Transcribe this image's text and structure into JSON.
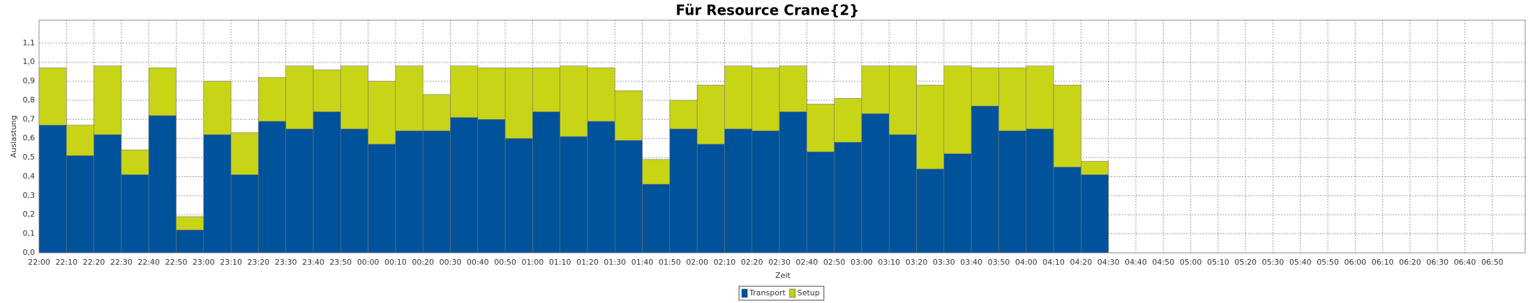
{
  "chart_data": {
    "type": "stacked-bar",
    "title": "Für Resource Crane{2}",
    "xlabel": "Zeit",
    "ylabel": "Auslastung",
    "categories": [
      "22:00",
      "22:10",
      "22:20",
      "22:30",
      "22:40",
      "22:50",
      "23:00",
      "23:10",
      "23:20",
      "23:30",
      "23:40",
      "23:50",
      "00:00",
      "00:10",
      "00:20",
      "00:30",
      "00:40",
      "00:50",
      "01:00",
      "01:10",
      "01:20",
      "01:30",
      "01:40",
      "01:50",
      "02:00",
      "02:10",
      "02:20",
      "02:30",
      "02:40",
      "02:50",
      "03:00",
      "03:10",
      "03:20",
      "03:30",
      "03:40",
      "03:50",
      "04:00",
      "04:10",
      "04:20",
      "04:30",
      "04:40",
      "04:50",
      "05:00",
      "05:10",
      "05:20",
      "05:30",
      "05:40",
      "05:50",
      "06:00",
      "06:10",
      "06:20",
      "06:30",
      "06:40",
      "06:50"
    ],
    "series": [
      {
        "name": "Transport",
        "color": "#00529b",
        "values": [
          0.67,
          0.51,
          0.62,
          0.41,
          0.72,
          0.12,
          0.62,
          0.41,
          0.69,
          0.65,
          0.74,
          0.65,
          0.57,
          0.64,
          0.64,
          0.71,
          0.7,
          0.6,
          0.74,
          0.61,
          0.69,
          0.59,
          0.36,
          0.65,
          0.57,
          0.65,
          0.64,
          0.74,
          0.53,
          0.58,
          0.73,
          0.62,
          0.44,
          0.52,
          0.77,
          0.64,
          0.65,
          0.45,
          0.41,
          null,
          null,
          null,
          null,
          null,
          null,
          null,
          null,
          null,
          null,
          null,
          null,
          null,
          null,
          null
        ]
      },
      {
        "name": "Setup",
        "color": "#c8d416",
        "values": [
          0.3,
          0.16,
          0.36,
          0.13,
          0.25,
          0.07,
          0.28,
          0.22,
          0.23,
          0.33,
          0.22,
          0.33,
          0.33,
          0.34,
          0.19,
          0.27,
          0.27,
          0.37,
          0.23,
          0.37,
          0.28,
          0.26,
          0.13,
          0.15,
          0.31,
          0.33,
          0.33,
          0.24,
          0.25,
          0.23,
          0.25,
          0.36,
          0.44,
          0.46,
          0.2,
          0.33,
          0.33,
          0.43,
          0.07,
          null,
          null,
          null,
          null,
          null,
          null,
          null,
          null,
          null,
          null,
          null,
          null,
          null,
          null,
          null
        ]
      }
    ],
    "ylim": [
      0,
      1.22
    ],
    "yticks": [
      {
        "value": 0,
        "label": "0,0"
      },
      {
        "value": 0.1,
        "label": "0,1"
      },
      {
        "value": 0.2,
        "label": "0,2"
      },
      {
        "value": 0.3,
        "label": "0,3"
      },
      {
        "value": 0.4,
        "label": "0,4"
      },
      {
        "value": 0.5,
        "label": "0,5"
      },
      {
        "value": 0.6,
        "label": "0,6"
      },
      {
        "value": 0.7,
        "label": "0,7"
      },
      {
        "value": 0.8,
        "label": "0,8"
      },
      {
        "value": 0.9,
        "label": "0,9"
      },
      {
        "value": 1.0,
        "label": "1,0"
      },
      {
        "value": 1.1,
        "label": "1,1"
      }
    ],
    "grid": true,
    "legend": "bottom"
  }
}
